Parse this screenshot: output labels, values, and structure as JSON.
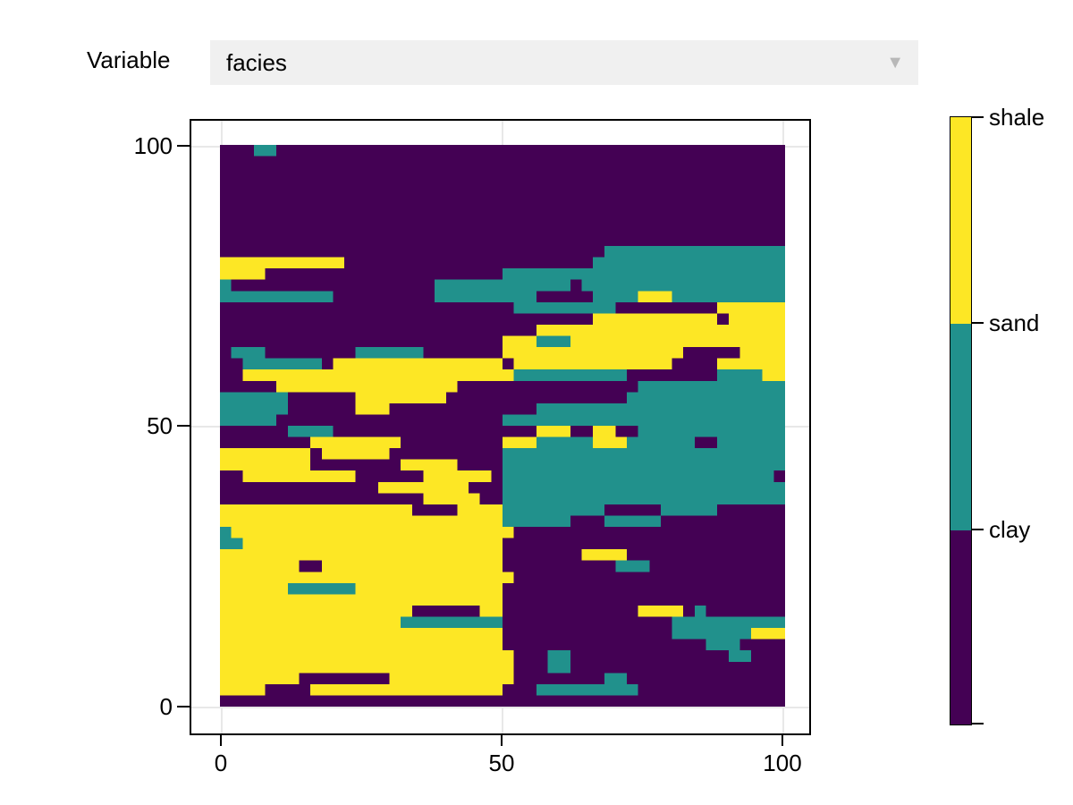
{
  "controls": {
    "label": "Variable",
    "selected_value": "facies",
    "dropdown_arrow": "▼"
  },
  "chart_data": {
    "type": "heatmap",
    "title": "",
    "xlabel": "",
    "ylabel": "",
    "x_ticks": [
      "0",
      "50",
      "100"
    ],
    "y_ticks": [
      "0",
      "50",
      "100"
    ],
    "xlim": [
      -5,
      104
    ],
    "ylim": [
      -5,
      104
    ],
    "grid_on": true,
    "legend_position": "right-colorbar",
    "categories": [
      {
        "name": "clay",
        "code": "p",
        "color": "#440154"
      },
      {
        "name": "sand",
        "code": "t",
        "color": "#21918c"
      },
      {
        "name": "shale",
        "code": "y",
        "color": "#fde725"
      }
    ],
    "colorbar_labels_top_to_bottom": [
      "shale",
      "sand",
      "clay"
    ],
    "grid": {
      "cols": 50,
      "rows": 50,
      "encoding": "run-length per row, top row (y=100) first; p=clay(purple), t=sand(teal), y=shale(yellow); approximate transcription of facies field",
      "rows_rle": [
        "p3t2p45",
        "p50",
        "p50",
        "p50",
        "p50",
        "p50",
        "p50",
        "p50",
        "p50",
        "p34t16",
        "y11p22t17",
        "y4p21t25",
        "t1p18t12p1t18",
        "t10p9t9p5t4y3t10",
        "p26t9p9y6",
        "p33y11p1y5",
        "p28y22",
        "p25y3t3y19",
        "p1t3p8t6p7y16p5y4",
        "p2t7p1y15p1y14p4y6",
        "p2y24t10p8t4y2",
        "p5y16p16t13",
        "t6p6y8p16t14",
        "t6p6y3p13t22",
        "t5p20t25",
        "p6t4p18y3p2y2p2t13",
        "p8y8p9y3t5y3t6p2t6",
        "y8p1y6p10t25",
        "y8p8y5p4t25",
        "p2y10p6y6p1t24p1",
        "p14y8p3t25",
        "p18y5p2t25",
        "y17p4y4t9p5t5p6",
        "y25t6p3t5p11",
        "t1y25p24",
        "t2y23p25",
        "y25p7y4p14",
        "y7p2y16p10t3p12",
        "y26p24",
        "y6t6y13p25",
        "y25p25",
        "y17p6y2p12y4p1t1p7",
        "y16t9p15t10",
        "y25p15t7y3",
        "y25p18t3p4",
        "y26p3t2p14t2p3",
        "y26p3t2p19",
        "y7p8y11p8t2p14",
        "y4p4y17p3t9p13",
        "p50"
      ]
    }
  }
}
